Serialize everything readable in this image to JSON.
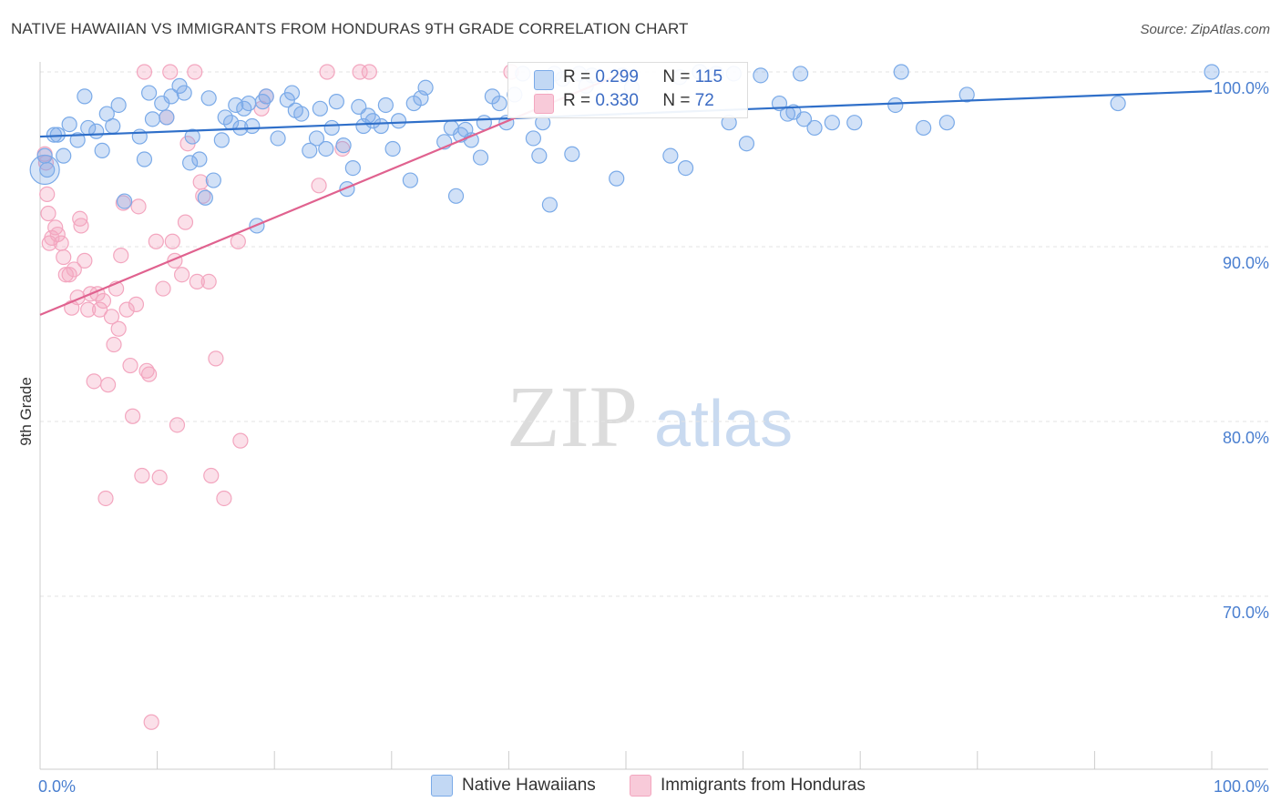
{
  "title": "NATIVE HAWAIIAN VS IMMIGRANTS FROM HONDURAS 9TH GRADE CORRELATION CHART",
  "source": "Source: ZipAtlas.com",
  "watermark": {
    "zip": "ZIP",
    "atlas": "atlas"
  },
  "legend": {
    "series1": {
      "name": "Native Hawaiians",
      "r_label": "R =",
      "r_value": "0.299",
      "n_label": "N =",
      "n_value": "115"
    },
    "series2": {
      "name": "Immigrants from Honduras",
      "r_label": "R =",
      "r_value": "0.330",
      "n_label": "N =",
      "n_value": "72"
    }
  },
  "chart_data": {
    "type": "scatter",
    "title": "NATIVE HAWAIIAN VS IMMIGRANTS FROM HONDURAS 9TH GRADE CORRELATION CHART",
    "xlabel": "",
    "ylabel": "9th Grade",
    "xlim": [
      0,
      100
    ],
    "ylim": [
      60,
      100
    ],
    "x_ticks": [
      "0.0%",
      "100.0%"
    ],
    "y_ticks": [
      {
        "value": 100,
        "label": "100.0%"
      },
      {
        "value": 90,
        "label": "90.0%"
      },
      {
        "value": 80,
        "label": "80.0%"
      },
      {
        "value": 70,
        "label": "70.0%"
      }
    ],
    "colors": {
      "series1": "#7aaae8",
      "series1_line": "#2f6fc9",
      "series2": "#f3a6bf",
      "series2_line": "#e0628f",
      "tick_label": "#4a7fd0"
    },
    "series": [
      {
        "name": "Native Hawaiians",
        "trend": {
          "x0": 0,
          "y0": 96.3,
          "x1": 100,
          "y1": 98.9
        },
        "points": [
          [
            0.4,
            95.2
          ],
          [
            0.6,
            94.4
          ],
          [
            1.2,
            96.4
          ],
          [
            1.5,
            96.4
          ],
          [
            2.0,
            95.2
          ],
          [
            2.5,
            97.0
          ],
          [
            3.2,
            96.1
          ],
          [
            3.8,
            98.6
          ],
          [
            4.1,
            96.8
          ],
          [
            4.8,
            96.6
          ],
          [
            5.3,
            95.5
          ],
          [
            5.7,
            97.6
          ],
          [
            6.2,
            96.9
          ],
          [
            6.7,
            98.1
          ],
          [
            7.2,
            92.6
          ],
          [
            8.5,
            96.3
          ],
          [
            8.9,
            95.0
          ],
          [
            9.3,
            98.8
          ],
          [
            9.6,
            97.3
          ],
          [
            10.4,
            98.2
          ],
          [
            10.8,
            97.4
          ],
          [
            11.2,
            98.6
          ],
          [
            11.9,
            99.2
          ],
          [
            12.3,
            98.8
          ],
          [
            12.8,
            94.8
          ],
          [
            13.0,
            96.3
          ],
          [
            13.6,
            95.0
          ],
          [
            14.1,
            92.8
          ],
          [
            14.4,
            98.5
          ],
          [
            14.8,
            93.8
          ],
          [
            15.5,
            96.1
          ],
          [
            15.8,
            97.4
          ],
          [
            16.3,
            97.1
          ],
          [
            16.7,
            98.1
          ],
          [
            17.1,
            96.8
          ],
          [
            17.4,
            97.9
          ],
          [
            17.8,
            98.2
          ],
          [
            18.1,
            96.9
          ],
          [
            18.5,
            91.2
          ],
          [
            19.0,
            98.3
          ],
          [
            19.3,
            98.6
          ],
          [
            20.3,
            96.2
          ],
          [
            21.1,
            98.4
          ],
          [
            21.5,
            98.8
          ],
          [
            21.8,
            97.8
          ],
          [
            22.3,
            97.6
          ],
          [
            23.0,
            95.5
          ],
          [
            23.6,
            96.2
          ],
          [
            23.9,
            97.9
          ],
          [
            24.4,
            95.6
          ],
          [
            24.9,
            96.8
          ],
          [
            25.3,
            98.3
          ],
          [
            25.9,
            95.8
          ],
          [
            26.2,
            93.3
          ],
          [
            26.7,
            94.5
          ],
          [
            27.2,
            98.0
          ],
          [
            27.6,
            96.9
          ],
          [
            28.0,
            97.5
          ],
          [
            28.4,
            97.2
          ],
          [
            29.1,
            96.9
          ],
          [
            29.5,
            98.1
          ],
          [
            30.1,
            95.6
          ],
          [
            30.6,
            97.2
          ],
          [
            31.6,
            93.8
          ],
          [
            31.9,
            98.2
          ],
          [
            32.5,
            98.5
          ],
          [
            32.9,
            99.1
          ],
          [
            34.5,
            96.0
          ],
          [
            35.1,
            96.8
          ],
          [
            35.5,
            92.9
          ],
          [
            35.9,
            96.4
          ],
          [
            36.3,
            96.7
          ],
          [
            36.8,
            96.1
          ],
          [
            37.6,
            95.1
          ],
          [
            37.9,
            97.1
          ],
          [
            38.6,
            98.6
          ],
          [
            39.2,
            98.2
          ],
          [
            39.8,
            97.1
          ],
          [
            40.5,
            98.7
          ],
          [
            41.2,
            99.9
          ],
          [
            42.1,
            96.2
          ],
          [
            42.6,
            95.2
          ],
          [
            42.9,
            97.1
          ],
          [
            43.5,
            92.4
          ],
          [
            43.9,
            99.9
          ],
          [
            44.6,
            99.6
          ],
          [
            45.4,
            95.3
          ],
          [
            46.0,
            99.9
          ],
          [
            46.6,
            99.2
          ],
          [
            47.1,
            99.8
          ],
          [
            49.2,
            93.9
          ],
          [
            49.7,
            99.8
          ],
          [
            50.5,
            99.1
          ],
          [
            53.8,
            95.2
          ],
          [
            54.6,
            99.7
          ],
          [
            55.1,
            94.5
          ],
          [
            56.3,
            100.0
          ],
          [
            57.7,
            99.9
          ],
          [
            58.8,
            97.1
          ],
          [
            59.2,
            99.9
          ],
          [
            60.3,
            95.9
          ],
          [
            61.5,
            99.8
          ],
          [
            63.1,
            98.2
          ],
          [
            63.8,
            97.6
          ],
          [
            64.3,
            97.7
          ],
          [
            64.9,
            99.9
          ],
          [
            65.2,
            97.3
          ],
          [
            66.1,
            96.8
          ],
          [
            67.6,
            97.1
          ],
          [
            69.5,
            97.1
          ],
          [
            73.0,
            98.1
          ],
          [
            73.5,
            100.0
          ],
          [
            75.4,
            96.8
          ],
          [
            77.4,
            97.1
          ],
          [
            79.1,
            98.7
          ],
          [
            92.0,
            98.2
          ],
          [
            100.0,
            100.0
          ]
        ]
      },
      {
        "name": "Immigrants from Honduras",
        "trend": {
          "x0": 0,
          "y0": 86.1,
          "x1": 50,
          "y1": 100.0
        },
        "points": [
          [
            0.4,
            95.3
          ],
          [
            0.5,
            94.8
          ],
          [
            0.6,
            93.0
          ],
          [
            0.7,
            91.9
          ],
          [
            0.8,
            90.2
          ],
          [
            1.0,
            90.5
          ],
          [
            1.3,
            91.1
          ],
          [
            1.5,
            90.7
          ],
          [
            1.8,
            90.2
          ],
          [
            2.0,
            89.4
          ],
          [
            2.2,
            88.4
          ],
          [
            2.5,
            88.4
          ],
          [
            2.7,
            86.5
          ],
          [
            2.9,
            88.7
          ],
          [
            3.2,
            87.1
          ],
          [
            3.4,
            91.6
          ],
          [
            3.5,
            91.2
          ],
          [
            3.8,
            89.2
          ],
          [
            4.1,
            86.4
          ],
          [
            4.3,
            87.3
          ],
          [
            4.6,
            82.3
          ],
          [
            4.9,
            87.3
          ],
          [
            5.1,
            86.4
          ],
          [
            5.4,
            86.9
          ],
          [
            5.6,
            75.6
          ],
          [
            5.8,
            82.1
          ],
          [
            6.1,
            86.0
          ],
          [
            6.3,
            84.4
          ],
          [
            6.5,
            87.6
          ],
          [
            6.7,
            85.3
          ],
          [
            6.9,
            89.5
          ],
          [
            7.1,
            92.5
          ],
          [
            7.4,
            86.4
          ],
          [
            7.7,
            83.2
          ],
          [
            7.9,
            80.3
          ],
          [
            8.2,
            86.7
          ],
          [
            8.4,
            92.3
          ],
          [
            8.7,
            76.9
          ],
          [
            8.9,
            100.0
          ],
          [
            9.1,
            82.9
          ],
          [
            9.3,
            82.7
          ],
          [
            9.5,
            62.8
          ],
          [
            9.9,
            90.3
          ],
          [
            10.2,
            76.8
          ],
          [
            10.5,
            87.6
          ],
          [
            10.8,
            97.4
          ],
          [
            11.1,
            100.0
          ],
          [
            11.3,
            90.3
          ],
          [
            11.5,
            89.2
          ],
          [
            11.7,
            79.8
          ],
          [
            12.1,
            88.4
          ],
          [
            12.4,
            91.4
          ],
          [
            12.6,
            95.9
          ],
          [
            13.2,
            100.0
          ],
          [
            13.4,
            88.0
          ],
          [
            13.7,
            93.7
          ],
          [
            13.9,
            92.9
          ],
          [
            14.4,
            88.0
          ],
          [
            14.6,
            76.9
          ],
          [
            15.0,
            83.6
          ],
          [
            15.7,
            75.6
          ],
          [
            16.9,
            90.3
          ],
          [
            17.1,
            78.9
          ],
          [
            18.9,
            97.9
          ],
          [
            19.3,
            98.6
          ],
          [
            23.8,
            93.5
          ],
          [
            24.5,
            100.0
          ],
          [
            25.8,
            95.6
          ],
          [
            27.3,
            100.0
          ],
          [
            28.1,
            100.0
          ],
          [
            40.2,
            100.0
          ],
          [
            42.8,
            98.6
          ]
        ]
      }
    ]
  }
}
